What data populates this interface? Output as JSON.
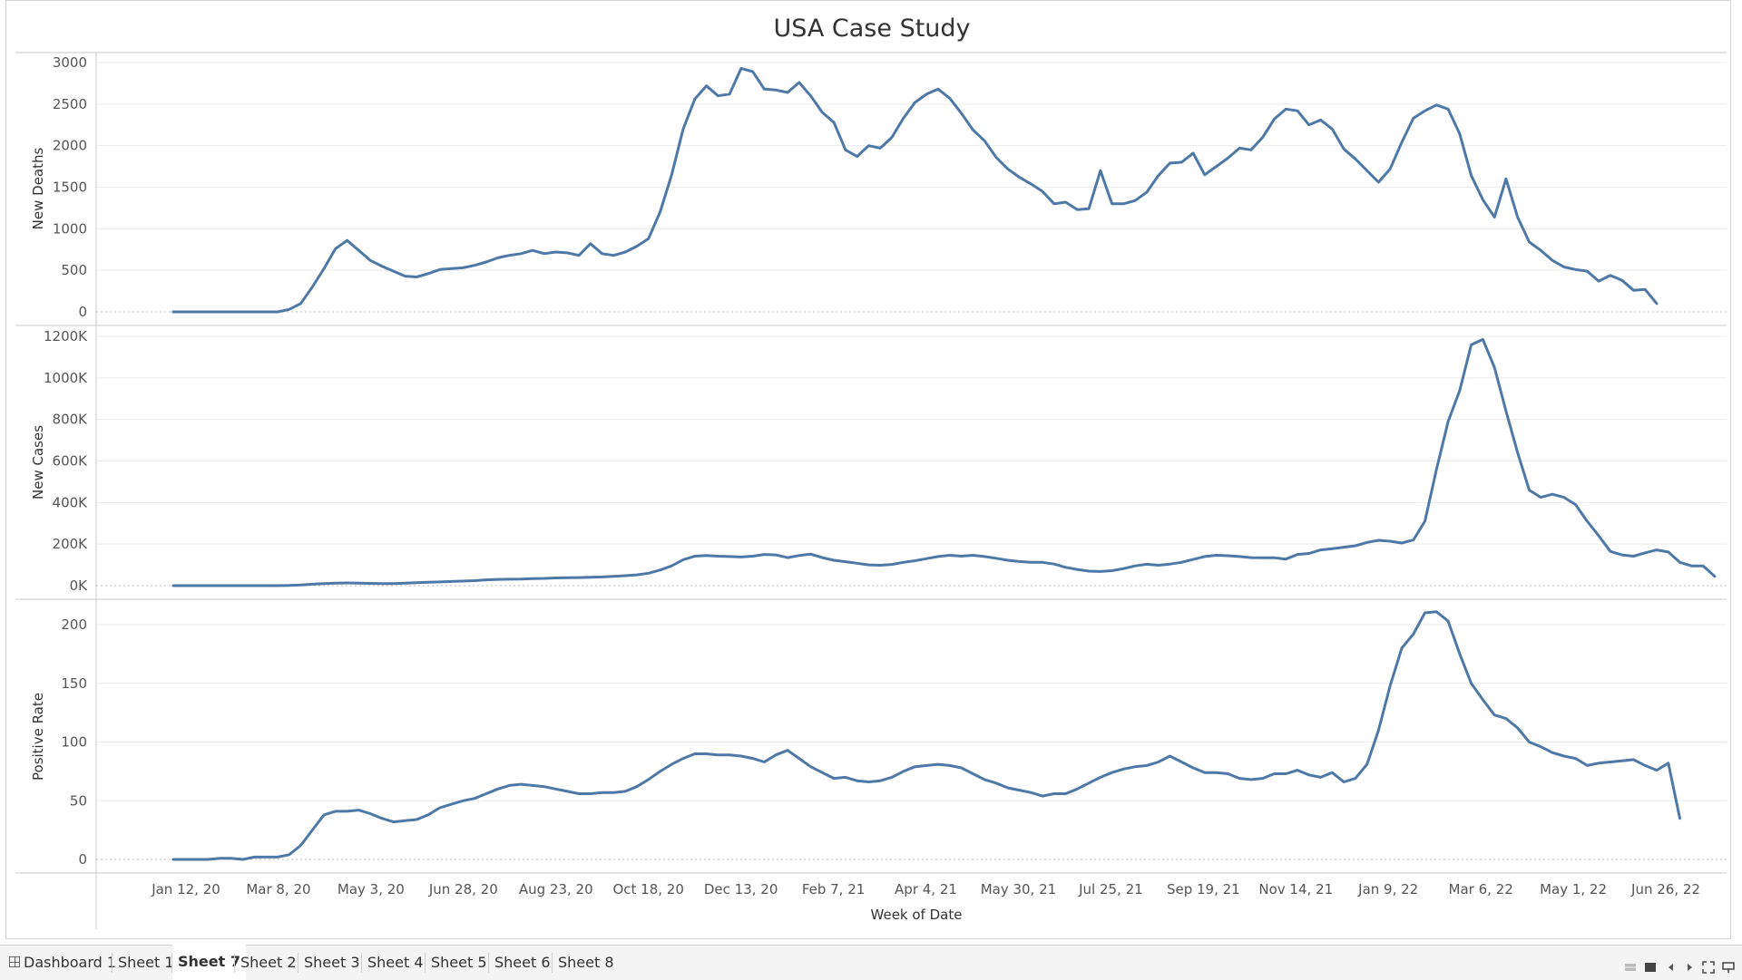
{
  "chart_data": {
    "type": "line",
    "title": "USA Case Study",
    "xlabel": "Week of Date",
    "x_tick_labels": [
      "Jan 12, 20",
      "Mar 8, 20",
      "May 3, 20",
      "Jun 28, 20",
      "Aug 23, 20",
      "Oct 18, 20",
      "Dec 13, 20",
      "Feb 7, 21",
      "Apr 4, 21",
      "May 30, 21",
      "Jul 25, 21",
      "Sep 19, 21",
      "Nov 14, 21",
      "Jan 9, 22",
      "Mar 6, 22",
      "May 1, 22",
      "Jun 26, 22"
    ],
    "panels": [
      {
        "ylabel": "New Deaths",
        "ylim": [
          0,
          3000
        ],
        "y_ticks": [
          0,
          500,
          1000,
          1500,
          2000,
          2500,
          3000
        ],
        "y_tick_labels": [
          "0",
          "500",
          "1000",
          "1500",
          "2000",
          "2500",
          "3000"
        ],
        "values": [
          0,
          0,
          0,
          0,
          0,
          0,
          0,
          0,
          0,
          0,
          30,
          100,
          300,
          520,
          760,
          860,
          740,
          620,
          550,
          490,
          430,
          420,
          460,
          510,
          520,
          530,
          560,
          600,
          650,
          680,
          700,
          740,
          700,
          720,
          710,
          680,
          820,
          700,
          680,
          720,
          790,
          880,
          1200,
          1650,
          2200,
          2560,
          2720,
          2600,
          2620,
          2930,
          2890,
          2680,
          2670,
          2640,
          2760,
          2600,
          2400,
          2280,
          1950,
          1870,
          2000,
          1970,
          2100,
          2330,
          2520,
          2620,
          2680,
          2570,
          2390,
          2190,
          2060,
          1860,
          1720,
          1620,
          1540,
          1450,
          1300,
          1320,
          1230,
          1240,
          1700,
          1300,
          1300,
          1340,
          1440,
          1640,
          1790,
          1800,
          1910,
          1650,
          1750,
          1850,
          1970,
          1950,
          2100,
          2320,
          2440,
          2420,
          2250,
          2310,
          2200,
          1960,
          1840,
          1700,
          1560,
          1720,
          2040,
          2330,
          2420,
          2490,
          2440,
          2140,
          1640,
          1350,
          1140,
          1600,
          1140,
          840,
          740,
          620,
          540,
          510,
          490,
          370,
          440,
          380,
          260,
          270,
          100
        ]
      },
      {
        "ylabel": "New Cases",
        "ylim": [
          0,
          1200000
        ],
        "y_ticks": [
          0,
          200000,
          400000,
          600000,
          800000,
          1000000,
          1200000
        ],
        "y_tick_labels": [
          "0K",
          "200K",
          "400K",
          "600K",
          "800K",
          "1000K",
          "1200K"
        ],
        "values": [
          0,
          0,
          0,
          0,
          0,
          0,
          0,
          0,
          0,
          0,
          1000,
          3000,
          7000,
          10000,
          12000,
          13000,
          12000,
          11000,
          10000,
          10000,
          12000,
          14000,
          16000,
          18000,
          20000,
          22000,
          24000,
          28000,
          30000,
          31000,
          32000,
          34000,
          35000,
          37000,
          38000,
          39000,
          40000,
          42000,
          45000,
          48000,
          52000,
          60000,
          75000,
          95000,
          125000,
          142000,
          145000,
          142000,
          140000,
          138000,
          142000,
          150000,
          148000,
          135000,
          145000,
          152000,
          135000,
          122000,
          115000,
          108000,
          100000,
          98000,
          102000,
          112000,
          120000,
          130000,
          140000,
          146000,
          142000,
          146000,
          140000,
          132000,
          122000,
          116000,
          112000,
          112000,
          104000,
          88000,
          78000,
          70000,
          68000,
          72000,
          82000,
          95000,
          103000,
          98000,
          104000,
          112000,
          126000,
          140000,
          146000,
          144000,
          140000,
          135000,
          134000,
          134000,
          128000,
          150000,
          155000,
          172000,
          178000,
          185000,
          192000,
          208000,
          218000,
          214000,
          205000,
          220000,
          310000,
          560000,
          790000,
          940000,
          1160000,
          1185000,
          1050000,
          840000,
          640000,
          460000,
          425000,
          440000,
          425000,
          390000,
          310000,
          240000,
          165000,
          148000,
          142000,
          158000,
          172000,
          162000,
          112000,
          95000,
          95000,
          45000
        ]
      },
      {
        "ylabel": "Positive Rate",
        "ylim": [
          0,
          210
        ],
        "y_ticks": [
          0,
          50,
          100,
          150,
          200
        ],
        "y_tick_labels": [
          "0",
          "50",
          "100",
          "150",
          "200"
        ],
        "values": [
          0,
          0,
          0,
          0,
          1,
          1,
          0,
          2,
          2,
          2,
          4,
          12,
          25,
          38,
          41,
          41,
          42,
          39,
          35,
          32,
          33,
          34,
          38,
          44,
          47,
          50,
          52,
          56,
          60,
          63,
          64,
          63,
          62,
          60,
          58,
          56,
          56,
          57,
          57,
          58,
          62,
          68,
          75,
          81,
          86,
          90,
          90,
          89,
          89,
          88,
          86,
          83,
          89,
          93,
          86,
          79,
          74,
          69,
          70,
          67,
          66,
          67,
          70,
          75,
          79,
          80,
          81,
          80,
          78,
          73,
          68,
          65,
          61,
          59,
          57,
          54,
          56,
          56,
          60,
          65,
          70,
          74,
          77,
          79,
          80,
          83,
          88,
          83,
          78,
          74,
          74,
          73,
          69,
          68,
          69,
          73,
          73,
          76,
          72,
          70,
          74,
          66,
          69,
          81,
          110,
          148,
          180,
          192,
          210,
          211,
          203,
          175,
          150,
          136,
          123,
          120,
          112,
          100,
          96,
          91,
          88,
          86,
          80,
          82,
          83,
          84,
          85,
          80,
          76,
          82,
          35
        ]
      }
    ],
    "grid": true,
    "legend": "none"
  },
  "tabs": [
    "Dashboard 1",
    "Sheet 1",
    "Sheet 7",
    "Sheet 2",
    "Sheet 3",
    "Sheet 4",
    "Sheet 5",
    "Sheet 6",
    "Sheet 8"
  ],
  "active_tab": "Sheet 7",
  "colors": {
    "line": "#4e79a7",
    "grid": "#ececec",
    "axis": "#c8c8c8"
  }
}
